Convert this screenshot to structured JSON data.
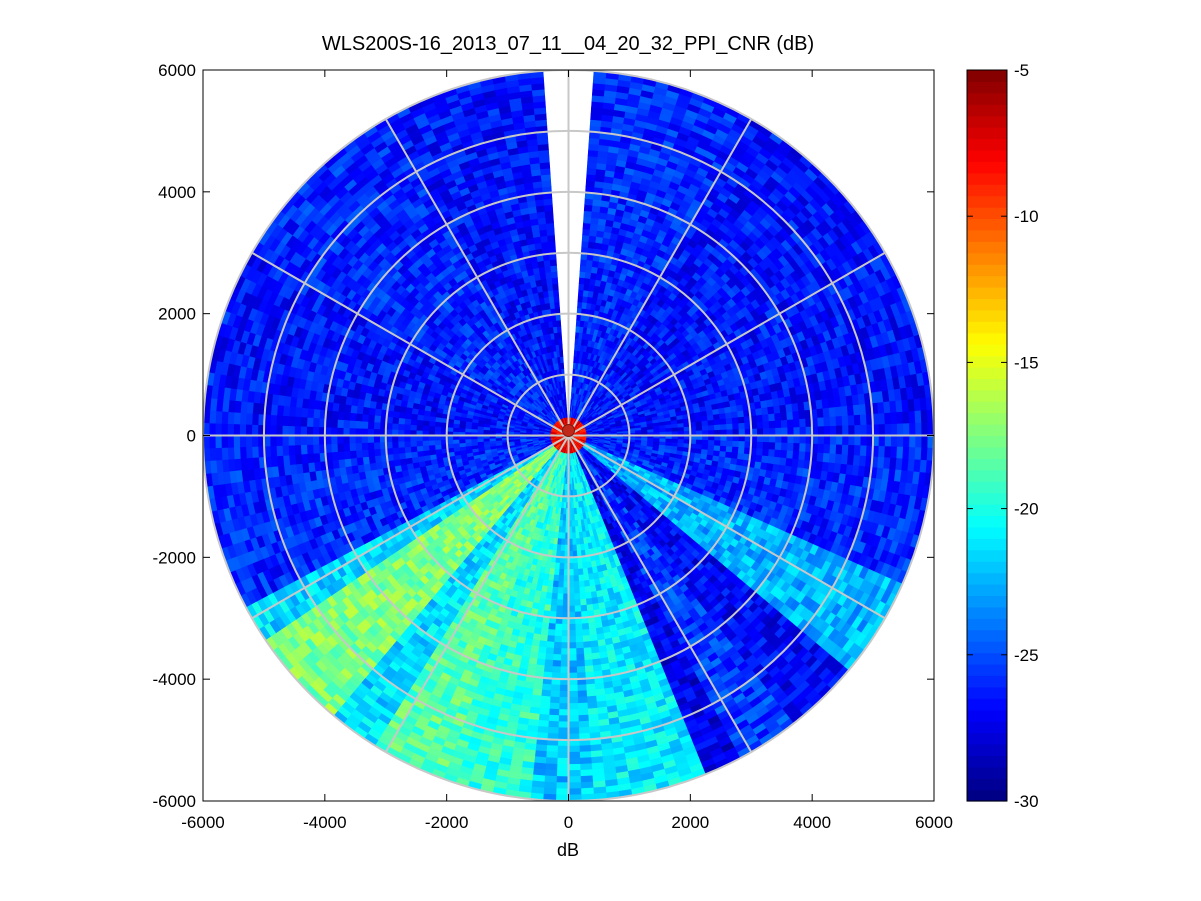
{
  "chart_data": {
    "type": "heatmap",
    "subtype": "polar-ppi",
    "title": "WLS200S-16_2013_07_11__04_20_32_PPI_CNR (dB)",
    "xlabel": "dB",
    "ylabel": "",
    "xlim": [
      -6000,
      6000
    ],
    "ylim": [
      -6000,
      6000
    ],
    "xticks": [
      "-6000",
      "-4000",
      "-2000",
      "0",
      "2000",
      "4000",
      "6000"
    ],
    "yticks": [
      "6000",
      "4000",
      "2000",
      "0",
      "-2000",
      "-4000",
      "-6000"
    ],
    "xtick_values": [
      -6000,
      -4000,
      -2000,
      0,
      2000,
      4000,
      6000
    ],
    "ytick_values": [
      6000,
      4000,
      2000,
      0,
      -2000,
      -4000,
      -6000
    ],
    "max_range": 6000,
    "range_rings": [
      1000,
      2000,
      3000,
      4000,
      5000,
      6000
    ],
    "spoke_angles_deg": [
      0,
      30,
      60,
      90,
      120,
      150,
      180,
      210,
      240,
      270,
      300,
      330
    ],
    "blanked_sector_deg": [
      -4,
      4
    ],
    "colormap": "jet",
    "clim": [
      -30,
      -5
    ],
    "colorbar_ticks": [
      "-5",
      "-10",
      "-15",
      "-20",
      "-25",
      "-30"
    ],
    "colorbar_tick_values": [
      -5,
      -10,
      -15,
      -20,
      -25,
      -30
    ],
    "sector_cnr_db": [
      {
        "az_from": 4,
        "az_to": 30,
        "cnr": -26
      },
      {
        "az_from": 30,
        "az_to": 60,
        "cnr": -26.5
      },
      {
        "az_from": 60,
        "az_to": 90,
        "cnr": -26.5
      },
      {
        "az_from": 90,
        "az_to": 115,
        "cnr": -26
      },
      {
        "az_from": 115,
        "az_to": 130,
        "cnr": -22.5
      },
      {
        "az_from": 130,
        "az_to": 143,
        "cnr": -27
      },
      {
        "az_from": 143,
        "az_to": 152,
        "cnr": -25.5
      },
      {
        "az_from": 152,
        "az_to": 158,
        "cnr": -27.5
      },
      {
        "az_from": 158,
        "az_to": 176,
        "cnr": -21
      },
      {
        "az_from": 176,
        "az_to": 186,
        "cnr": -22
      },
      {
        "az_from": 186,
        "az_to": 200,
        "cnr": -19.5
      },
      {
        "az_from": 200,
        "az_to": 212,
        "cnr": -18.5
      },
      {
        "az_from": 212,
        "az_to": 220,
        "cnr": -21.5
      },
      {
        "az_from": 220,
        "az_to": 237,
        "cnr": -17.5
      },
      {
        "az_from": 237,
        "az_to": 243,
        "cnr": -21.5
      },
      {
        "az_from": 243,
        "az_to": 270,
        "cnr": -26
      },
      {
        "az_from": 270,
        "az_to": 300,
        "cnr": -26.5
      },
      {
        "az_from": 300,
        "az_to": 330,
        "cnr": -26
      },
      {
        "az_from": 330,
        "az_to": 356,
        "cnr": -26.5
      }
    ],
    "center_cnr_db": -8
  }
}
